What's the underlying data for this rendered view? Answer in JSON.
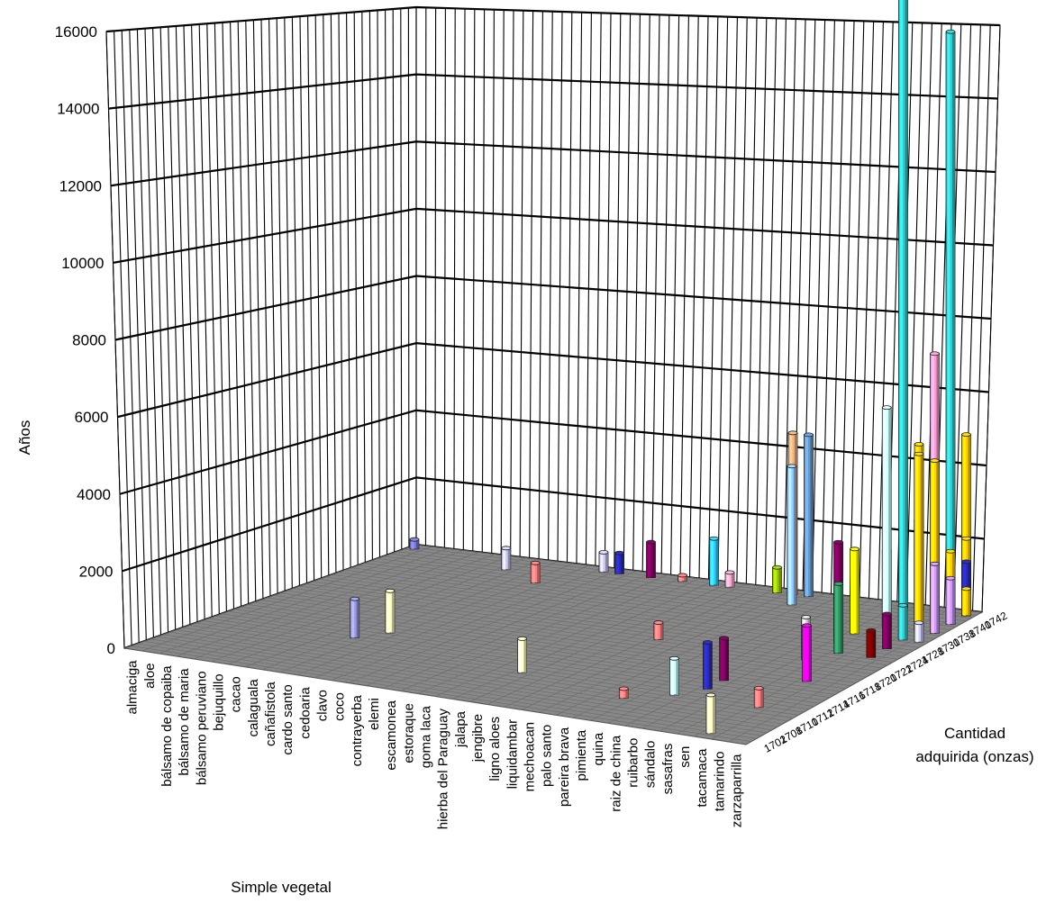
{
  "chart_data": {
    "type": "bar",
    "subtype": "3d-column",
    "title": "",
    "ylabel": "Años",
    "xlabel": "Simple vegetal",
    "zlabel": [
      "Cantidad",
      "adquirida (onzas)"
    ],
    "ylim": [
      0,
      16000
    ],
    "yticks": [
      "0",
      "2000",
      "4000",
      "6000",
      "8000",
      "10000",
      "12000",
      "14000",
      "16000"
    ],
    "grid": true,
    "floor_color": "#888888",
    "categories": [
      "almaciga",
      "aloe",
      "bálsamo de copaiba",
      "bálsamo de maria",
      "bálsamo peruviano",
      "bejuquillo",
      "cacao",
      "calaguala",
      "cañafistola",
      "cardo santo",
      "cedoaria",
      "clavo",
      "coco",
      "contrayerba",
      "elemi",
      "escamonea",
      "estoraque",
      "goma laca",
      "hierba del Paraguay",
      "jalapa",
      "jengibre",
      "ligno aloes",
      "liquidambar",
      "mechoacan",
      "palo santo",
      "pareira brava",
      "pimienta",
      "quina",
      "raiz de china",
      "ruibarbo",
      "sándalo",
      "sasafras",
      "sen",
      "tacamaca",
      "tamarindo",
      "zarzaparrilla"
    ],
    "series_labels": [
      "1702",
      "1708",
      "1710",
      "1712",
      "1714",
      "1716",
      "1718",
      "1720",
      "1722",
      "1724",
      "1728",
      "1730",
      "1738",
      "1740",
      "1742"
    ],
    "points": [
      {
        "category": "almaciga",
        "series": "1742",
        "value": 250,
        "color": "#7b7bd6"
      },
      {
        "category": "calaguala",
        "series": "1740",
        "value": 560,
        "color": "#c8c8f0"
      },
      {
        "category": "cañafistola",
        "series": "1714",
        "value": 1010,
        "color": "#9a9ae6"
      },
      {
        "category": "cardo santo",
        "series": "1716",
        "value": 1090,
        "color": "#ffffc0"
      },
      {
        "category": "cedoaria",
        "series": "1738",
        "value": 520,
        "color": "#ff8080"
      },
      {
        "category": "coco",
        "series": "1742",
        "value": 510,
        "color": "#c8c8f0"
      },
      {
        "category": "contrayerba",
        "series": "1742",
        "value": 540,
        "color": "#2a2ab8"
      },
      {
        "category": "escamonea",
        "series": "1742",
        "value": 920,
        "color": "#800060"
      },
      {
        "category": "goma laca",
        "series": "1742",
        "value": 160,
        "color": "#ff8080"
      },
      {
        "category": "jalapa",
        "series": "1742",
        "value": 1210,
        "color": "#33ccff"
      },
      {
        "category": "jalapa",
        "series": "1712",
        "value": 880,
        "color": "#ffffc0"
      },
      {
        "category": "jengibre",
        "series": "1742",
        "value": 380,
        "color": "#ffaacc"
      },
      {
        "category": "liquidambar",
        "series": "1722",
        "value": 440,
        "color": "#ff8080"
      },
      {
        "category": "mechoacan",
        "series": "1742",
        "value": 660,
        "color": "#99cc00"
      },
      {
        "category": "palo santo",
        "series": "1742",
        "value": 4200,
        "color": "#f0b080"
      },
      {
        "category": "pareira brava",
        "series": "1742",
        "value": 4200,
        "color": "#6699cc"
      },
      {
        "category": "pareira brava",
        "series": "1740",
        "value": 3600,
        "color": "#99ccff"
      },
      {
        "category": "pimienta",
        "series": "1710",
        "value": 250,
        "color": "#ff8080"
      },
      {
        "category": "raiz de china",
        "series": "1712",
        "value": 950,
        "color": "#ccffff"
      },
      {
        "category": "ruibarbo",
        "series": "1714",
        "value": 1210,
        "color": "#2a2ab8"
      },
      {
        "category": "ruibarbo",
        "series": "1716",
        "value": 1100,
        "color": "#800060"
      },
      {
        "category": "sasafras",
        "series": "1742",
        "value": 15900,
        "color": "#33cccc"
      },
      {
        "category": "sasafras",
        "series": "1730",
        "value": 2200,
        "color": "#ffff00"
      },
      {
        "category": "sasafras",
        "series": "1728",
        "value": 2600,
        "color": "#800060"
      },
      {
        "category": "sasafras",
        "series": "1722",
        "value": 1100,
        "color": "#d0d0d0"
      },
      {
        "category": "sen",
        "series": "1742",
        "value": 4300,
        "color": "#ffcc00"
      },
      {
        "category": "sen",
        "series": "1738",
        "value": 2000,
        "color": "#2a2ab8"
      },
      {
        "category": "sen",
        "series": "1738",
        "value": 5700,
        "color": "#ccffff"
      },
      {
        "category": "sen",
        "series": "1724",
        "value": 1800,
        "color": "#339966"
      },
      {
        "category": "tacamaca",
        "series": "1742",
        "value": 6700,
        "color": "#ff99cc"
      },
      {
        "category": "tacamaca",
        "series": "1740",
        "value": 2600,
        "color": "#99ccff"
      },
      {
        "category": "tacamaca",
        "series": "1718",
        "value": 1450,
        "color": "#ff00ff"
      },
      {
        "category": "tacamaca",
        "series": "1702",
        "value": 1000,
        "color": "#ffffc0"
      },
      {
        "category": "tacamaca",
        "series": "1712",
        "value": 500,
        "color": "#ff8080"
      },
      {
        "category": "tamarindo",
        "series": "1742",
        "value": 15100,
        "color": "#33cccc"
      },
      {
        "category": "tamarindo",
        "series": "1740",
        "value": 4200,
        "color": "#ffcc00"
      },
      {
        "category": "tamarindo",
        "series": "1738",
        "value": 4600,
        "color": "#ffcc00"
      },
      {
        "category": "tamarindo",
        "series": "1730",
        "value": 900,
        "color": "#33cccc"
      },
      {
        "category": "tamarindo",
        "series": "1728",
        "value": 900,
        "color": "#800060"
      },
      {
        "category": "tamarindo",
        "series": "1724",
        "value": 700,
        "color": "#800000"
      },
      {
        "category": "zarzaparrilla",
        "series": "1742",
        "value": 4700,
        "color": "#ffcc00"
      },
      {
        "category": "zarzaparrilla",
        "series": "1740",
        "value": 1900,
        "color": "#ffcc00"
      },
      {
        "category": "zarzaparrilla",
        "series": "1738",
        "value": 1800,
        "color": "#cc99ff"
      },
      {
        "category": "zarzaparrilla",
        "series": "1742",
        "value": 2000,
        "color": "#ffcc00"
      },
      {
        "category": "zarzaparrilla",
        "series": "1742",
        "value": 1400,
        "color": "#2a2ab8"
      },
      {
        "category": "zarzaparrilla",
        "series": "1740",
        "value": 1200,
        "color": "#cc99ff"
      },
      {
        "category": "zarzaparrilla",
        "series": "1742",
        "value": 700,
        "color": "#ffcc00"
      },
      {
        "category": "zarzaparrilla",
        "series": "1730",
        "value": 500,
        "color": "#d0d0ff"
      }
    ]
  }
}
